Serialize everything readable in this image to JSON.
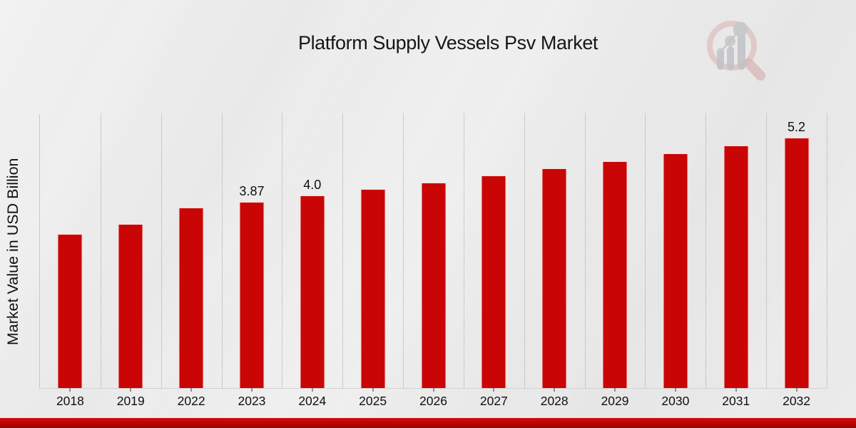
{
  "title": "Platform Supply Vessels Psv Market",
  "ylabel": "Market Value in USD Billion",
  "logo_icon": "magnifier-bar-chart-icon",
  "colors": {
    "bar": "#c90505",
    "banner_top": "#d60b0b",
    "banner_bottom": "#9b0202",
    "background": "#eaeaea",
    "gridline": "#a9a9a9",
    "axis": "#c9c9c9",
    "text": "#101010"
  },
  "chart_data": {
    "type": "bar",
    "title": "Platform Supply Vessels Psv Market",
    "xlabel": "",
    "ylabel": "Market Value in USD Billion",
    "categories": [
      "2018",
      "2019",
      "2022",
      "2023",
      "2024",
      "2025",
      "2026",
      "2027",
      "2028",
      "2029",
      "2030",
      "2031",
      "2032"
    ],
    "values": [
      3.2,
      3.4,
      3.74,
      3.87,
      4.0,
      4.13,
      4.27,
      4.41,
      4.56,
      4.71,
      4.87,
      5.03,
      5.2
    ],
    "data_labels": {
      "2023": "3.87",
      "2024": "4.0",
      "2032": "5.2"
    },
    "ylim": [
      0,
      5.7
    ],
    "grid": "vertical-dotted-between-categories",
    "legend": "none",
    "bar_color": "#c90505"
  }
}
